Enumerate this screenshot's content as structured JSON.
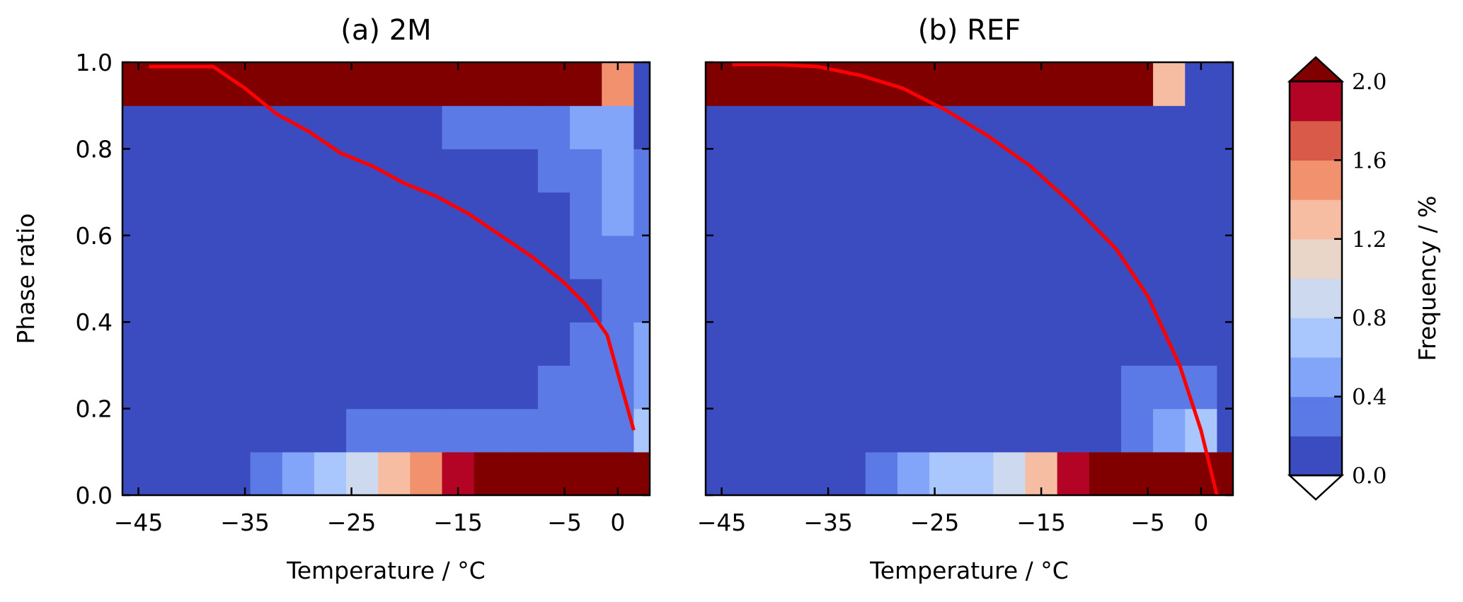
{
  "chart_data": [
    {
      "type": "heatmap",
      "title": "(a) 2M",
      "xlabel": "Temperature / °C",
      "ylabel": "Phase ratio",
      "xlim": [
        -46.5,
        3
      ],
      "ylim": [
        0,
        1.0
      ],
      "x_ticks": [
        "−45",
        "−35",
        "−25",
        "−15",
        "−5",
        "0"
      ],
      "y_ticks": [
        "0.0",
        "0.2",
        "0.4",
        "0.6",
        "0.8",
        "1.0"
      ],
      "x_bin_edges": [
        -46.5,
        -43.5,
        -40.5,
        -37.5,
        -34.5,
        -31.5,
        -28.5,
        -25.5,
        -22.5,
        -19.5,
        -16.5,
        -13.5,
        -10.5,
        -7.5,
        -4.5,
        -1.5,
        1.5,
        3
      ],
      "y_bin_edges": [
        0,
        0.1,
        0.2,
        0.3,
        0.4,
        0.5,
        0.6,
        0.7,
        0.8,
        0.9,
        1.0
      ],
      "frequency_percent": [
        [
          0.1,
          0.1,
          0.1,
          0.1,
          0.3,
          0.5,
          0.7,
          0.9,
          1.3,
          1.5,
          1.9,
          2.2,
          2.2,
          2.2,
          2.2,
          2.2,
          2.2
        ],
        [
          0.1,
          0.1,
          0.1,
          0.1,
          0.1,
          0.1,
          0.1,
          0.3,
          0.3,
          0.3,
          0.3,
          0.3,
          0.3,
          0.3,
          0.3,
          0.3,
          0.7
        ],
        [
          0.1,
          0.1,
          0.1,
          0.1,
          0.1,
          0.1,
          0.1,
          0.1,
          0.1,
          0.1,
          0.1,
          0.1,
          0.1,
          0.3,
          0.3,
          0.3,
          0.5
        ],
        [
          0.1,
          0.1,
          0.1,
          0.1,
          0.1,
          0.1,
          0.1,
          0.1,
          0.1,
          0.1,
          0.1,
          0.1,
          0.1,
          0.1,
          0.3,
          0.3,
          0.5
        ],
        [
          0.1,
          0.1,
          0.1,
          0.1,
          0.1,
          0.1,
          0.1,
          0.1,
          0.1,
          0.1,
          0.1,
          0.1,
          0.1,
          0.1,
          0.1,
          0.3,
          0.3
        ],
        [
          0.1,
          0.1,
          0.1,
          0.1,
          0.1,
          0.1,
          0.1,
          0.1,
          0.1,
          0.1,
          0.1,
          0.1,
          0.1,
          0.1,
          0.3,
          0.3,
          0.3
        ],
        [
          0.1,
          0.1,
          0.1,
          0.1,
          0.1,
          0.1,
          0.1,
          0.1,
          0.1,
          0.1,
          0.1,
          0.1,
          0.1,
          0.1,
          0.3,
          0.5,
          0.3
        ],
        [
          0.1,
          0.1,
          0.1,
          0.1,
          0.1,
          0.1,
          0.1,
          0.1,
          0.1,
          0.1,
          0.1,
          0.1,
          0.1,
          0.3,
          0.3,
          0.5,
          0.3
        ],
        [
          0.1,
          0.1,
          0.1,
          0.1,
          0.1,
          0.1,
          0.1,
          0.1,
          0.1,
          0.1,
          0.3,
          0.3,
          0.3,
          0.3,
          0.5,
          0.5,
          0.1
        ],
        [
          2.2,
          2.2,
          2.2,
          2.2,
          2.2,
          2.2,
          2.2,
          2.2,
          2.2,
          2.2,
          2.2,
          2.2,
          2.2,
          2.2,
          2.2,
          1.5,
          0.1
        ]
      ],
      "series": [
        {
          "x": [
            -44,
            -41,
            -38,
            -35,
            -32,
            -29,
            -26,
            -23,
            -20,
            -17,
            -14,
            -11,
            -8,
            -5,
            -3,
            -1,
            1.5
          ],
          "values": [
            0.99,
            0.99,
            0.99,
            0.94,
            0.88,
            0.84,
            0.79,
            0.76,
            0.72,
            0.69,
            0.65,
            0.6,
            0.55,
            0.49,
            0.44,
            0.37,
            0.15
          ]
        }
      ]
    },
    {
      "type": "heatmap",
      "title": "(b) REF",
      "xlabel": "Temperature / °C",
      "ylabel": "",
      "xlim": [
        -46.5,
        3
      ],
      "ylim": [
        0,
        1.0
      ],
      "x_ticks": [
        "−45",
        "−35",
        "−25",
        "−15",
        "−5",
        "0"
      ],
      "x_bin_edges": [
        -46.5,
        -43.5,
        -40.5,
        -37.5,
        -34.5,
        -31.5,
        -28.5,
        -25.5,
        -22.5,
        -19.5,
        -16.5,
        -13.5,
        -10.5,
        -7.5,
        -4.5,
        -1.5,
        1.5,
        3
      ],
      "y_bin_edges": [
        0,
        0.1,
        0.2,
        0.3,
        0.4,
        0.5,
        0.6,
        0.7,
        0.8,
        0.9,
        1.0
      ],
      "frequency_percent": [
        [
          0.1,
          0.1,
          0.1,
          0.1,
          0.1,
          0.3,
          0.5,
          0.7,
          0.7,
          0.9,
          1.3,
          1.9,
          2.2,
          2.2,
          2.2,
          2.2,
          2.2
        ],
        [
          0.1,
          0.1,
          0.1,
          0.1,
          0.1,
          0.1,
          0.1,
          0.1,
          0.1,
          0.1,
          0.1,
          0.1,
          0.1,
          0.3,
          0.5,
          0.7,
          0.1
        ],
        [
          0.1,
          0.1,
          0.1,
          0.1,
          0.1,
          0.1,
          0.1,
          0.1,
          0.1,
          0.1,
          0.1,
          0.1,
          0.1,
          0.3,
          0.3,
          0.3,
          0.1
        ],
        [
          0.1,
          0.1,
          0.1,
          0.1,
          0.1,
          0.1,
          0.1,
          0.1,
          0.1,
          0.1,
          0.1,
          0.1,
          0.1,
          0.1,
          0.1,
          0.1,
          0.1
        ],
        [
          0.1,
          0.1,
          0.1,
          0.1,
          0.1,
          0.1,
          0.1,
          0.1,
          0.1,
          0.1,
          0.1,
          0.1,
          0.1,
          0.1,
          0.1,
          0.1,
          0.1
        ],
        [
          0.1,
          0.1,
          0.1,
          0.1,
          0.1,
          0.1,
          0.1,
          0.1,
          0.1,
          0.1,
          0.1,
          0.1,
          0.1,
          0.1,
          0.1,
          0.1,
          0.1
        ],
        [
          0.1,
          0.1,
          0.1,
          0.1,
          0.1,
          0.1,
          0.1,
          0.1,
          0.1,
          0.1,
          0.1,
          0.1,
          0.1,
          0.1,
          0.1,
          0.1,
          0.1
        ],
        [
          0.1,
          0.1,
          0.1,
          0.1,
          0.1,
          0.1,
          0.1,
          0.1,
          0.1,
          0.1,
          0.1,
          0.1,
          0.1,
          0.1,
          0.1,
          0.1,
          0.1
        ],
        [
          0.1,
          0.1,
          0.1,
          0.1,
          0.1,
          0.1,
          0.1,
          0.1,
          0.1,
          0.1,
          0.1,
          0.1,
          0.1,
          0.1,
          0.1,
          0.1,
          0.1
        ],
        [
          2.2,
          2.2,
          2.2,
          2.2,
          2.2,
          2.2,
          2.2,
          2.2,
          2.2,
          2.2,
          2.2,
          2.2,
          2.2,
          2.2,
          1.3,
          0.1,
          0.1
        ]
      ],
      "series": [
        {
          "x": [
            -44,
            -40,
            -36,
            -32,
            -28,
            -24,
            -20,
            -16,
            -12,
            -8,
            -5,
            -2,
            0,
            1.5
          ],
          "values": [
            0.995,
            0.995,
            0.99,
            0.97,
            0.94,
            0.89,
            0.83,
            0.76,
            0.67,
            0.57,
            0.46,
            0.3,
            0.15,
            0.0
          ]
        }
      ]
    }
  ],
  "colorbar": {
    "label": "Frequency / %",
    "ticks": [
      "0.0",
      "0.4",
      "0.8",
      "1.2",
      "1.6",
      "2.0"
    ],
    "tick_values": [
      0.0,
      0.4,
      0.8,
      1.2,
      1.6,
      2.0
    ],
    "bounds": [
      0.0,
      0.2,
      0.4,
      0.6,
      0.8,
      1.0,
      1.2,
      1.4,
      1.6,
      1.8,
      2.0
    ],
    "colors": [
      "#3b4cc0",
      "#5b7ae5",
      "#82a5fa",
      "#aac7fd",
      "#ccd9ee",
      "#ead5c9",
      "#f6bda2",
      "#f2916e",
      "#da5a49",
      "#b40426"
    ],
    "under_color": "#ffffff",
    "over_color": "#800000"
  },
  "line_color": "#ff0000"
}
